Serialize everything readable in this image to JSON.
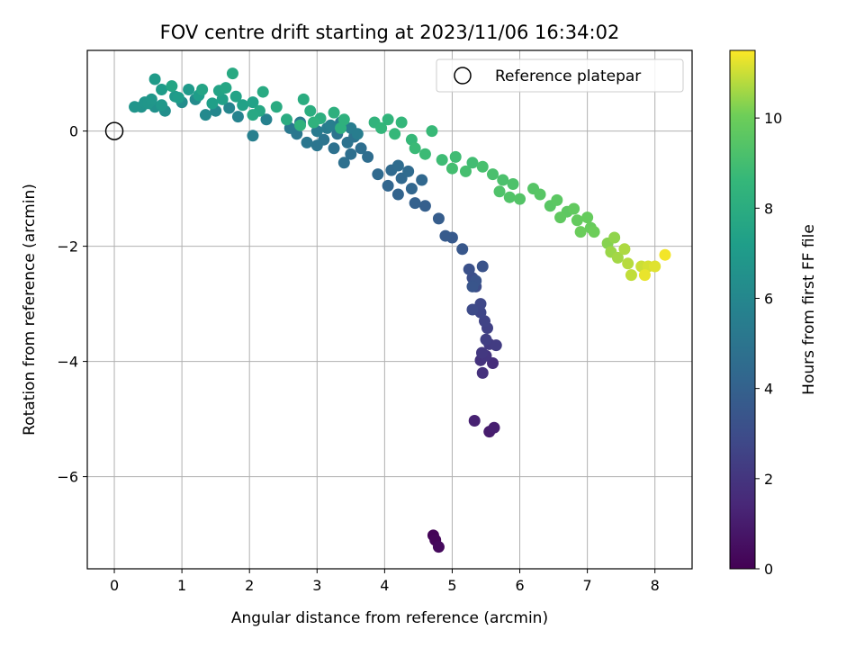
{
  "chart_data": {
    "type": "scatter",
    "title": "FOV centre drift starting at 2023/11/06 16:34:02",
    "xlabel": "Angular distance from reference (arcmin)",
    "ylabel": "Rotation from reference (arcmin)",
    "xlim": [
      -0.4,
      8.55
    ],
    "ylim": [
      -7.6,
      1.4
    ],
    "xticks": [
      0,
      1,
      2,
      3,
      4,
      5,
      6,
      7,
      8
    ],
    "yticks": [
      -6,
      -4,
      -2,
      0
    ],
    "grid": true,
    "legend": {
      "placement": "top-right",
      "entries": [
        "Reference platepar"
      ]
    },
    "reference_point": {
      "x": 0,
      "y": 0
    },
    "colorbar": {
      "label": "Hours from first FF file",
      "min": 0,
      "max": 11.5,
      "ticks": [
        0,
        2,
        4,
        6,
        8,
        10
      ],
      "colormap": "viridis"
    },
    "points": [
      [
        4.72,
        -7.02,
        0.1
      ],
      [
        4.75,
        -7.1,
        0.2
      ],
      [
        4.8,
        -7.22,
        0.3
      ],
      [
        5.55,
        -5.22,
        1.0
      ],
      [
        5.62,
        -5.15,
        1.1
      ],
      [
        5.33,
        -5.03,
        1.2
      ],
      [
        5.6,
        -4.03,
        1.7
      ],
      [
        5.45,
        -4.2,
        1.8
      ],
      [
        5.42,
        -3.98,
        1.9
      ],
      [
        5.5,
        -3.9,
        2.0
      ],
      [
        5.44,
        -3.85,
        2.1
      ],
      [
        5.55,
        -3.7,
        2.2
      ],
      [
        5.65,
        -3.72,
        2.3
      ],
      [
        5.5,
        -3.62,
        2.4
      ],
      [
        5.52,
        -3.42,
        2.5
      ],
      [
        5.48,
        -3.3,
        2.6
      ],
      [
        5.42,
        -3.15,
        2.7
      ],
      [
        5.42,
        -3.0,
        2.8
      ],
      [
        5.3,
        -3.1,
        2.9
      ],
      [
        5.35,
        -2.7,
        3.0
      ],
      [
        5.3,
        -2.55,
        3.1
      ],
      [
        5.25,
        -2.4,
        3.2
      ],
      [
        5.45,
        -2.35,
        3.3
      ],
      [
        5.35,
        -2.6,
        3.35
      ],
      [
        5.3,
        -2.7,
        3.4
      ],
      [
        5.15,
        -2.05,
        3.5
      ],
      [
        5.0,
        -1.85,
        3.6
      ],
      [
        4.9,
        -1.82,
        3.7
      ],
      [
        4.8,
        -1.52,
        3.8
      ],
      [
        4.6,
        -1.3,
        3.9
      ],
      [
        4.45,
        -1.25,
        4.0
      ],
      [
        4.2,
        -1.1,
        4.1
      ],
      [
        4.05,
        -0.95,
        4.2
      ],
      [
        4.4,
        -1.0,
        4.25
      ],
      [
        4.55,
        -0.85,
        4.3
      ],
      [
        4.25,
        -0.82,
        4.35
      ],
      [
        3.9,
        -0.75,
        4.4
      ],
      [
        4.1,
        -0.68,
        4.45
      ],
      [
        4.35,
        -0.7,
        4.5
      ],
      [
        4.2,
        -0.6,
        4.55
      ],
      [
        3.75,
        -0.45,
        4.6
      ],
      [
        3.65,
        -0.3,
        4.65
      ],
      [
        3.5,
        -0.4,
        4.7
      ],
      [
        3.4,
        -0.55,
        4.75
      ],
      [
        3.25,
        -0.3,
        4.8
      ],
      [
        3.45,
        -0.2,
        4.85
      ],
      [
        3.55,
        -0.1,
        4.9
      ],
      [
        3.3,
        -0.05,
        4.95
      ],
      [
        3.1,
        -0.15,
        5.0
      ],
      [
        3.0,
        -0.25,
        5.05
      ],
      [
        2.85,
        -0.2,
        5.1
      ],
      [
        2.7,
        -0.05,
        5.15
      ],
      [
        2.6,
        0.05,
        5.2
      ],
      [
        2.75,
        0.15,
        5.25
      ],
      [
        3.0,
        0.0,
        5.3
      ],
      [
        3.15,
        0.05,
        5.35
      ],
      [
        3.35,
        0.15,
        5.4
      ],
      [
        3.5,
        0.05,
        5.45
      ],
      [
        3.6,
        -0.05,
        5.5
      ],
      [
        3.2,
        0.1,
        5.55
      ],
      [
        2.05,
        -0.08,
        5.6
      ],
      [
        2.25,
        0.2,
        5.7
      ],
      [
        1.83,
        0.25,
        5.8
      ],
      [
        1.7,
        0.4,
        5.9
      ],
      [
        1.5,
        0.35,
        6.0
      ],
      [
        1.35,
        0.28,
        6.1
      ],
      [
        1.2,
        0.55,
        6.2
      ],
      [
        1.0,
        0.5,
        6.3
      ],
      [
        0.75,
        0.35,
        6.4
      ],
      [
        0.6,
        0.42,
        6.5
      ],
      [
        0.4,
        0.42,
        6.6
      ],
      [
        0.3,
        0.42,
        6.7
      ],
      [
        0.45,
        0.5,
        6.75
      ],
      [
        0.5,
        0.48,
        6.8
      ],
      [
        0.55,
        0.55,
        6.85
      ],
      [
        0.7,
        0.45,
        6.9
      ],
      [
        0.9,
        0.6,
        6.95
      ],
      [
        1.1,
        0.72,
        7.0
      ],
      [
        0.6,
        0.9,
        7.05
      ],
      [
        0.7,
        0.72,
        7.1
      ],
      [
        0.95,
        0.58,
        7.15
      ],
      [
        1.25,
        0.62,
        7.2
      ],
      [
        1.45,
        0.48,
        7.25
      ],
      [
        1.6,
        0.55,
        7.3
      ],
      [
        1.9,
        0.45,
        7.35
      ],
      [
        2.05,
        0.5,
        7.4
      ],
      [
        1.8,
        0.6,
        7.45
      ],
      [
        1.55,
        0.7,
        7.5
      ],
      [
        1.3,
        0.72,
        7.55
      ],
      [
        0.85,
        0.78,
        7.6
      ],
      [
        1.65,
        0.75,
        7.65
      ],
      [
        2.15,
        0.35,
        7.7
      ],
      [
        2.05,
        0.28,
        7.75
      ],
      [
        1.75,
        1.0,
        7.8
      ],
      [
        2.2,
        0.68,
        7.85
      ],
      [
        2.4,
        0.42,
        7.9
      ],
      [
        2.55,
        0.2,
        7.95
      ],
      [
        2.8,
        0.55,
        8.0
      ],
      [
        2.9,
        0.35,
        8.05
      ],
      [
        3.05,
        0.22,
        8.1
      ],
      [
        3.25,
        0.32,
        8.15
      ],
      [
        3.35,
        0.05,
        8.2
      ],
      [
        3.4,
        0.2,
        8.25
      ],
      [
        2.95,
        0.15,
        8.3
      ],
      [
        2.75,
        0.1,
        8.35
      ],
      [
        3.85,
        0.15,
        8.4
      ],
      [
        4.05,
        0.2,
        8.45
      ],
      [
        3.95,
        0.05,
        8.5
      ],
      [
        4.25,
        0.15,
        8.55
      ],
      [
        4.15,
        -0.05,
        8.6
      ],
      [
        4.4,
        -0.15,
        8.65
      ],
      [
        4.7,
        0.0,
        8.7
      ],
      [
        4.45,
        -0.3,
        8.75
      ],
      [
        4.6,
        -0.4,
        8.8
      ],
      [
        4.85,
        -0.5,
        8.85
      ],
      [
        5.05,
        -0.45,
        8.9
      ],
      [
        5.3,
        -0.55,
        8.95
      ],
      [
        5.0,
        -0.65,
        9.0
      ],
      [
        5.2,
        -0.7,
        9.05
      ],
      [
        5.45,
        -0.62,
        9.1
      ],
      [
        5.6,
        -0.75,
        9.15
      ],
      [
        5.75,
        -0.85,
        9.2
      ],
      [
        5.9,
        -0.92,
        9.25
      ],
      [
        5.7,
        -1.05,
        9.3
      ],
      [
        5.85,
        -1.15,
        9.35
      ],
      [
        6.0,
        -1.18,
        9.4
      ],
      [
        6.2,
        -1.0,
        9.45
      ],
      [
        6.3,
        -1.1,
        9.5
      ],
      [
        6.45,
        -1.3,
        9.55
      ],
      [
        6.55,
        -1.2,
        9.6
      ],
      [
        6.7,
        -1.4,
        9.65
      ],
      [
        6.6,
        -1.5,
        9.7
      ],
      [
        6.8,
        -1.35,
        9.75
      ],
      [
        6.85,
        -1.55,
        9.8
      ],
      [
        7.0,
        -1.5,
        9.85
      ],
      [
        7.05,
        -1.68,
        9.9
      ],
      [
        6.9,
        -1.75,
        9.95
      ],
      [
        7.1,
        -1.75,
        10.0
      ],
      [
        7.3,
        -1.95,
        10.3
      ],
      [
        7.4,
        -1.85,
        10.4
      ],
      [
        7.35,
        -2.1,
        10.5
      ],
      [
        7.45,
        -2.2,
        10.6
      ],
      [
        7.55,
        -2.05,
        10.7
      ],
      [
        7.6,
        -2.3,
        10.8
      ],
      [
        7.65,
        -2.5,
        10.9
      ],
      [
        7.8,
        -2.35,
        11.0
      ],
      [
        7.9,
        -2.35,
        11.1
      ],
      [
        8.0,
        -2.35,
        11.2
      ],
      [
        7.85,
        -2.5,
        11.3
      ],
      [
        8.15,
        -2.15,
        11.4
      ]
    ]
  }
}
